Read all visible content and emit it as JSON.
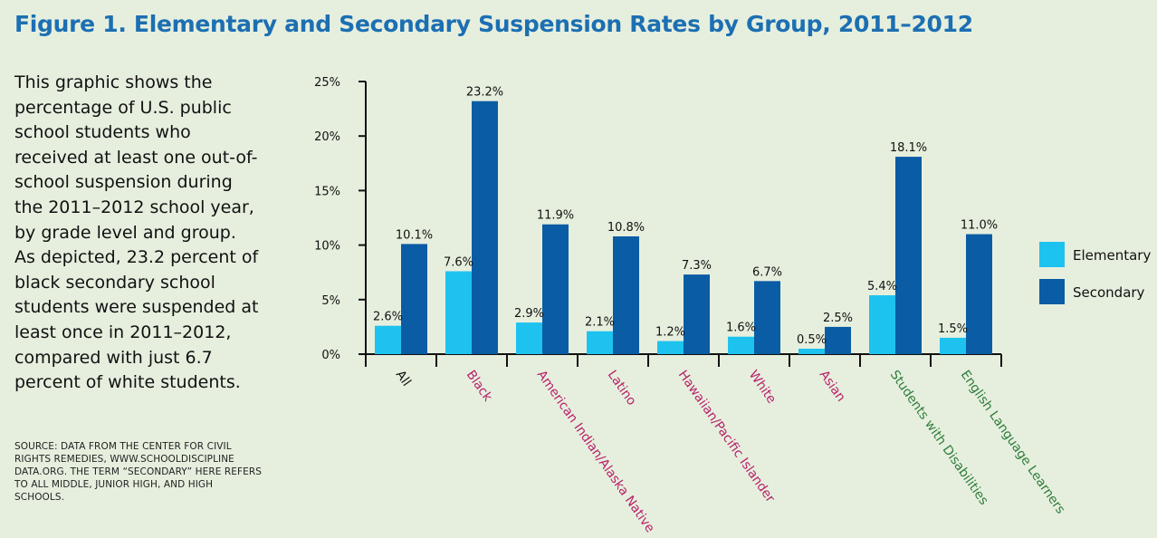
{
  "figure": {
    "title": "Figure 1. Elementary and Secondary Suspension Rates by Group, 2011–2012",
    "description": "This graphic shows the percentage of U.S. public school students who received at least one out-of-school suspension during the 2011–2012 school year, by grade level and group. As depicted, 23.2 percent of black secondary school students were suspended at least once in 2011–2012, compared with just 6.7 percent of white students.",
    "source": "SOURCE: DATA FROM THE CENTER FOR CIVIL RIGHTS REMEDIES, WWW.SCHOOLDISCIPLINE DATA.ORG. THE TERM “SECONDARY” HERE REFERS TO ALL MIDDLE, JUNIOR HIGH, AND HIGH SCHOOLS."
  },
  "chart_data": {
    "type": "bar",
    "title": "Figure 1. Elementary and Secondary Suspension Rates by Group, 2011–2012",
    "xlabel": "",
    "ylabel": "",
    "ylim": [
      0,
      25
    ],
    "yticks": [
      0,
      5,
      10,
      15,
      20,
      25
    ],
    "ytick_labels": [
      "0%",
      "5%",
      "10%",
      "15%",
      "20%",
      "25%"
    ],
    "categories": [
      "All",
      "Black",
      "American Indian/Alaska Native",
      "Latino",
      "Hawaiian/Pacific Islander",
      "White",
      "Asian",
      "Students with Disabilities",
      "English Language Learners"
    ],
    "category_colors": [
      "#111111",
      "#b8216b",
      "#b8216b",
      "#b8216b",
      "#b8216b",
      "#b8216b",
      "#b8216b",
      "#2e7d3a",
      "#2e7d3a"
    ],
    "series": [
      {
        "name": "Elementary",
        "color": "#1ec2ef",
        "values": [
          2.6,
          7.6,
          2.9,
          2.1,
          1.2,
          1.6,
          0.5,
          5.4,
          1.5
        ],
        "labels": [
          "2.6%",
          "7.6%",
          "2.9%",
          "2.1%",
          "1.2%",
          "1.6%",
          "0.5%",
          "5.4%",
          "1.5%"
        ]
      },
      {
        "name": "Secondary",
        "color": "#0a5ca4",
        "values": [
          10.1,
          23.2,
          11.9,
          10.8,
          7.3,
          6.7,
          2.5,
          18.1,
          11.0
        ],
        "labels": [
          "10.1%",
          "23.2%",
          "11.9%",
          "10.8%",
          "7.3%",
          "6.7%",
          "2.5%",
          "18.1%",
          "11.0%"
        ]
      }
    ],
    "grid": false,
    "legend": "right"
  }
}
